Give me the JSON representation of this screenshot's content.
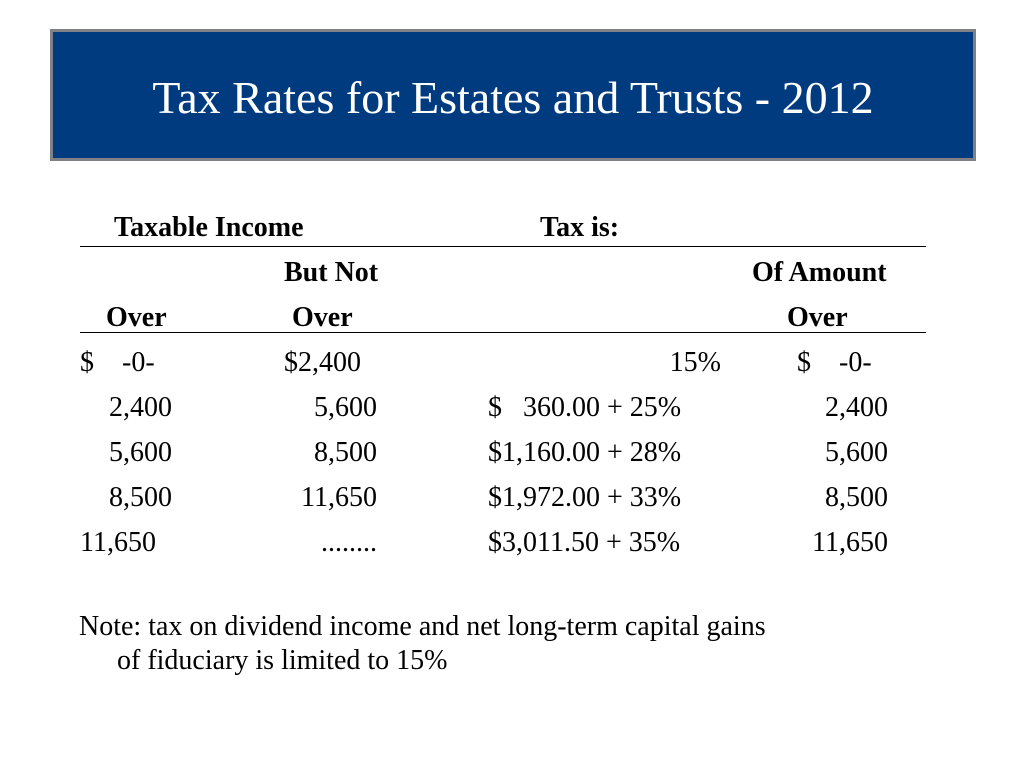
{
  "slide": {
    "title": "Tax Rates for Estates and Trusts - 2012",
    "colors": {
      "title_background": "#003b7f",
      "title_border": "#7f8186",
      "title_text": "#ffffff"
    }
  },
  "table": {
    "group_headers": {
      "taxable_income": "Taxable Income",
      "tax_is": "Tax is:"
    },
    "column_headers": {
      "but_not": "But Not",
      "of_amount": "Of Amount",
      "over": "Over",
      "but_not_over": "Over",
      "of_amount_over": "Over"
    },
    "rows": [
      {
        "over": "$    -0-",
        "but_not_over": "$2,400",
        "tax": "15%",
        "of_amount_over": "$    -0-"
      },
      {
        "over": "2,400",
        "but_not_over": "5,600",
        "tax": "$   360.00 + 25%",
        "of_amount_over": "2,400"
      },
      {
        "over": "5,600",
        "but_not_over": "8,500",
        "tax": "$1,160.00 + 28%",
        "of_amount_over": "5,600"
      },
      {
        "over": "8,500",
        "but_not_over": "11,650",
        "tax": "$1,972.00 + 33%",
        "of_amount_over": "8,500"
      },
      {
        "over": "11,650",
        "but_not_over": "........",
        "tax": "$3,011.50 + 35%",
        "of_amount_over": "11,650"
      }
    ]
  },
  "note": {
    "line1": "Note: tax on dividend income and net long-term capital gains",
    "line2": "of fiduciary is limited to 15%"
  }
}
